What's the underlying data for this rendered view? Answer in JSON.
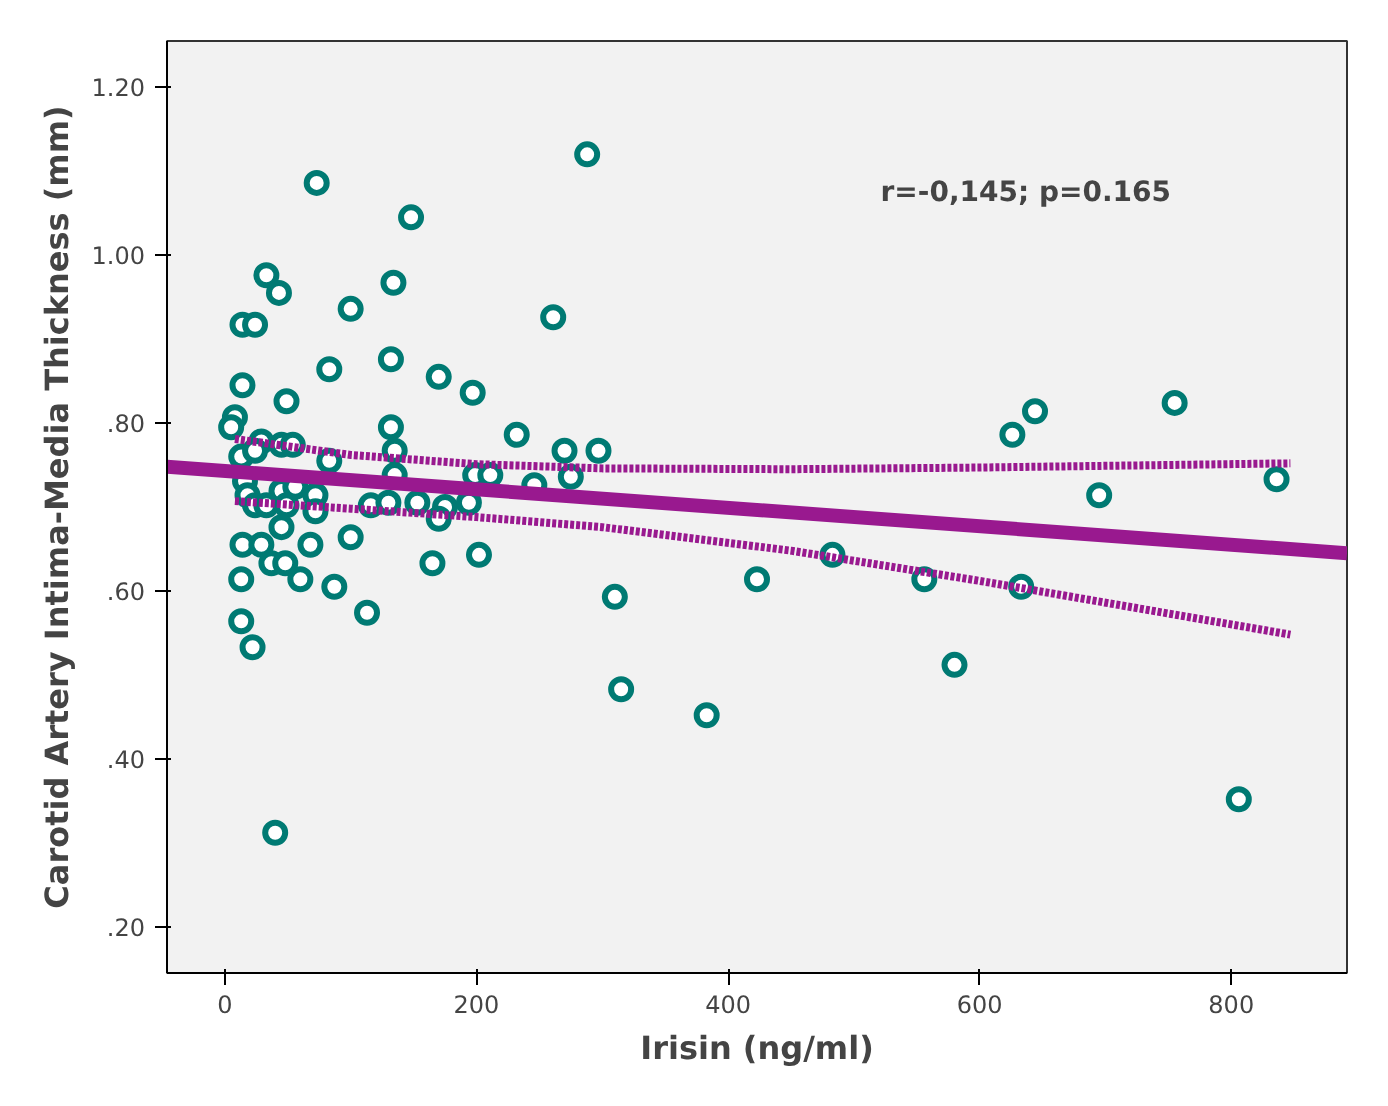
{
  "chart_data": {
    "type": "scatter",
    "xlabel": "Irisin (ng/ml)",
    "ylabel": "Carotid Artery Intima-Media Thickness (mm)",
    "annotations": [
      "r=-0,145; p=0.165"
    ],
    "xlim": [
      -46,
      892
    ],
    "ylim": [
      0.145,
      1.255
    ],
    "xticks": [
      0,
      200,
      400,
      600,
      800
    ],
    "yticks": [
      {
        "value": 0.2,
        "label": ".20"
      },
      {
        "value": 0.4,
        "label": ".40"
      },
      {
        "value": 0.6,
        "label": ".60"
      },
      {
        "value": 0.8,
        "label": ".80"
      },
      {
        "value": 1.0,
        "label": "1.00"
      },
      {
        "value": 1.2,
        "label": "1.20"
      }
    ],
    "grid": false,
    "series": [
      {
        "marker": "circle",
        "color": "#007a73",
        "x": [
          288,
          73,
          148,
          33,
          43,
          134,
          100,
          14,
          24,
          261,
          83,
          132,
          170,
          197,
          14,
          49,
          8,
          5,
          132,
          232,
          270,
          297,
          45,
          54,
          29,
          13,
          24,
          83,
          135,
          135,
          199,
          211,
          246,
          275,
          16,
          18,
          45,
          56,
          72,
          24,
          33,
          49,
          72,
          116,
          130,
          153,
          175,
          170,
          194,
          45,
          14,
          29,
          68,
          100,
          37,
          48,
          165,
          202,
          13,
          60,
          87,
          113,
          310,
          13,
          22,
          315,
          40,
          383,
          423,
          483,
          556,
          580,
          626,
          644,
          633,
          695,
          755,
          806,
          836
        ],
        "values": [
          1.12,
          1.086,
          1.045,
          0.976,
          0.955,
          0.967,
          0.936,
          0.917,
          0.917,
          0.926,
          0.864,
          0.876,
          0.855,
          0.836,
          0.845,
          0.826,
          0.807,
          0.795,
          0.795,
          0.786,
          0.767,
          0.767,
          0.774,
          0.774,
          0.778,
          0.76,
          0.767,
          0.755,
          0.767,
          0.738,
          0.738,
          0.738,
          0.726,
          0.736,
          0.731,
          0.714,
          0.719,
          0.724,
          0.714,
          0.702,
          0.702,
          0.702,
          0.695,
          0.702,
          0.705,
          0.705,
          0.7,
          0.686,
          0.705,
          0.676,
          0.655,
          0.655,
          0.655,
          0.664,
          0.633,
          0.633,
          0.633,
          0.643,
          0.614,
          0.614,
          0.605,
          0.574,
          0.593,
          0.564,
          0.533,
          0.483,
          0.312,
          0.452,
          0.614,
          0.643,
          0.614,
          0.512,
          0.786,
          0.814,
          0.605,
          0.714,
          0.824,
          0.352,
          0.733
        ]
      },
      {
        "type": "line",
        "line_style": "solid",
        "color": "#99198f",
        "x": [
          -46,
          892
        ],
        "values": [
          0.748,
          0.645
        ]
      },
      {
        "type": "line",
        "line_style": "dotted",
        "color": "#99198f",
        "x": [
          8,
          100,
          200,
          300,
          450,
          600,
          847
        ],
        "values": [
          0.781,
          0.762,
          0.751,
          0.746,
          0.745,
          0.747,
          0.752
        ]
      },
      {
        "type": "line",
        "line_style": "dotted",
        "color": "#99198f",
        "x": [
          8,
          100,
          200,
          300,
          450,
          600,
          847
        ],
        "values": [
          0.707,
          0.698,
          0.688,
          0.676,
          0.648,
          0.612,
          0.548
        ]
      }
    ]
  }
}
